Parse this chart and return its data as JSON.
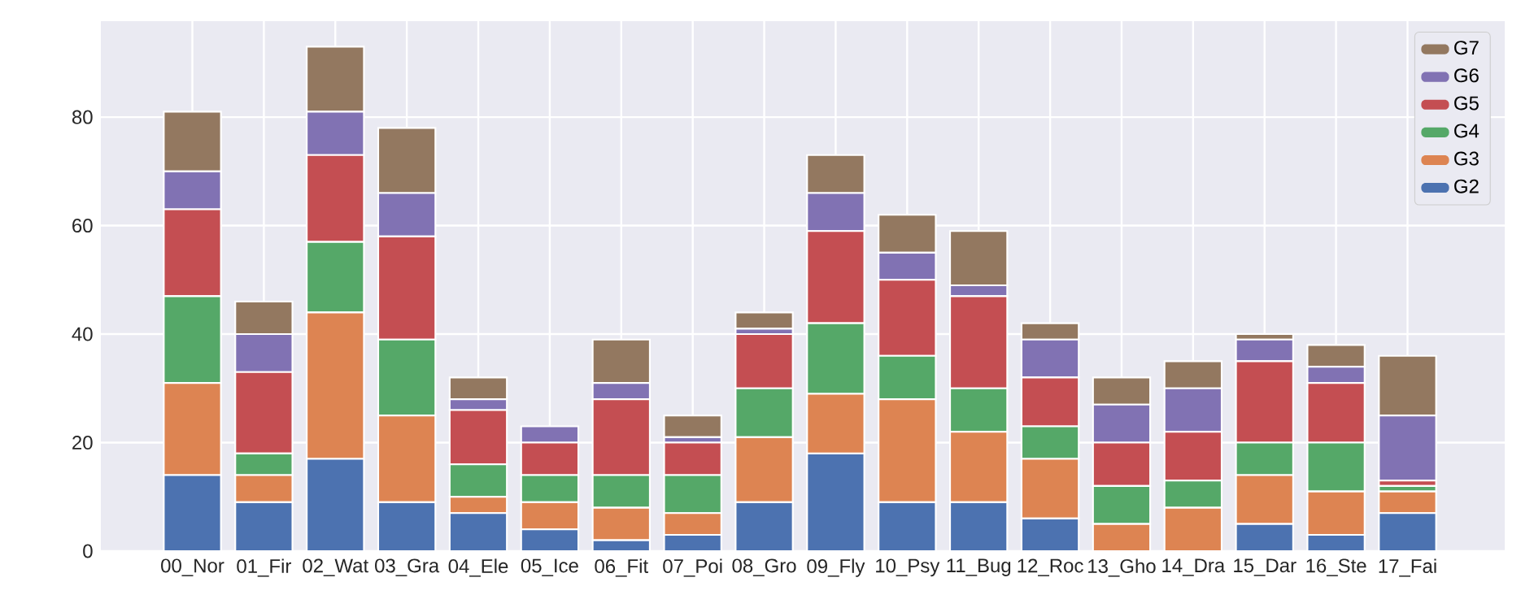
{
  "chart_data": {
    "type": "bar",
    "stacked": true,
    "categories": [
      "00_Nor",
      "01_Fir",
      "02_Wat",
      "03_Gra",
      "04_Ele",
      "05_Ice",
      "06_Fit",
      "07_Poi",
      "08_Gro",
      "09_Fly",
      "10_Psy",
      "11_Bug",
      "12_Roc",
      "13_Gho",
      "14_Dra",
      "15_Dar",
      "16_Ste",
      "17_Fai"
    ],
    "series": [
      {
        "name": "G2",
        "color": "#4c72b0",
        "values": [
          14,
          9,
          17,
          9,
          7,
          4,
          2,
          3,
          9,
          18,
          9,
          9,
          6,
          0,
          0,
          5,
          3,
          7
        ]
      },
      {
        "name": "G3",
        "color": "#dd8452",
        "values": [
          17,
          5,
          27,
          16,
          3,
          5,
          6,
          4,
          12,
          11,
          19,
          13,
          11,
          5,
          8,
          9,
          8,
          4
        ]
      },
      {
        "name": "G4",
        "color": "#55a868",
        "values": [
          16,
          4,
          13,
          14,
          6,
          5,
          6,
          7,
          9,
          13,
          8,
          8,
          6,
          7,
          5,
          6,
          9,
          1
        ]
      },
      {
        "name": "G5",
        "color": "#c44e52",
        "values": [
          16,
          15,
          16,
          19,
          10,
          6,
          14,
          6,
          10,
          17,
          14,
          17,
          9,
          8,
          9,
          15,
          11,
          1
        ]
      },
      {
        "name": "G6",
        "color": "#8172b3",
        "values": [
          7,
          7,
          8,
          8,
          2,
          3,
          3,
          1,
          1,
          7,
          5,
          2,
          7,
          7,
          8,
          4,
          3,
          12
        ]
      },
      {
        "name": "G7",
        "color": "#937860",
        "values": [
          11,
          6,
          12,
          12,
          4,
          0,
          8,
          4,
          3,
          7,
          7,
          10,
          3,
          5,
          5,
          1,
          4,
          11
        ]
      }
    ],
    "ylim": [
      0,
      97.7
    ],
    "yticks": [
      0,
      20,
      40,
      60,
      80
    ],
    "grid": true,
    "legend": "top right"
  }
}
